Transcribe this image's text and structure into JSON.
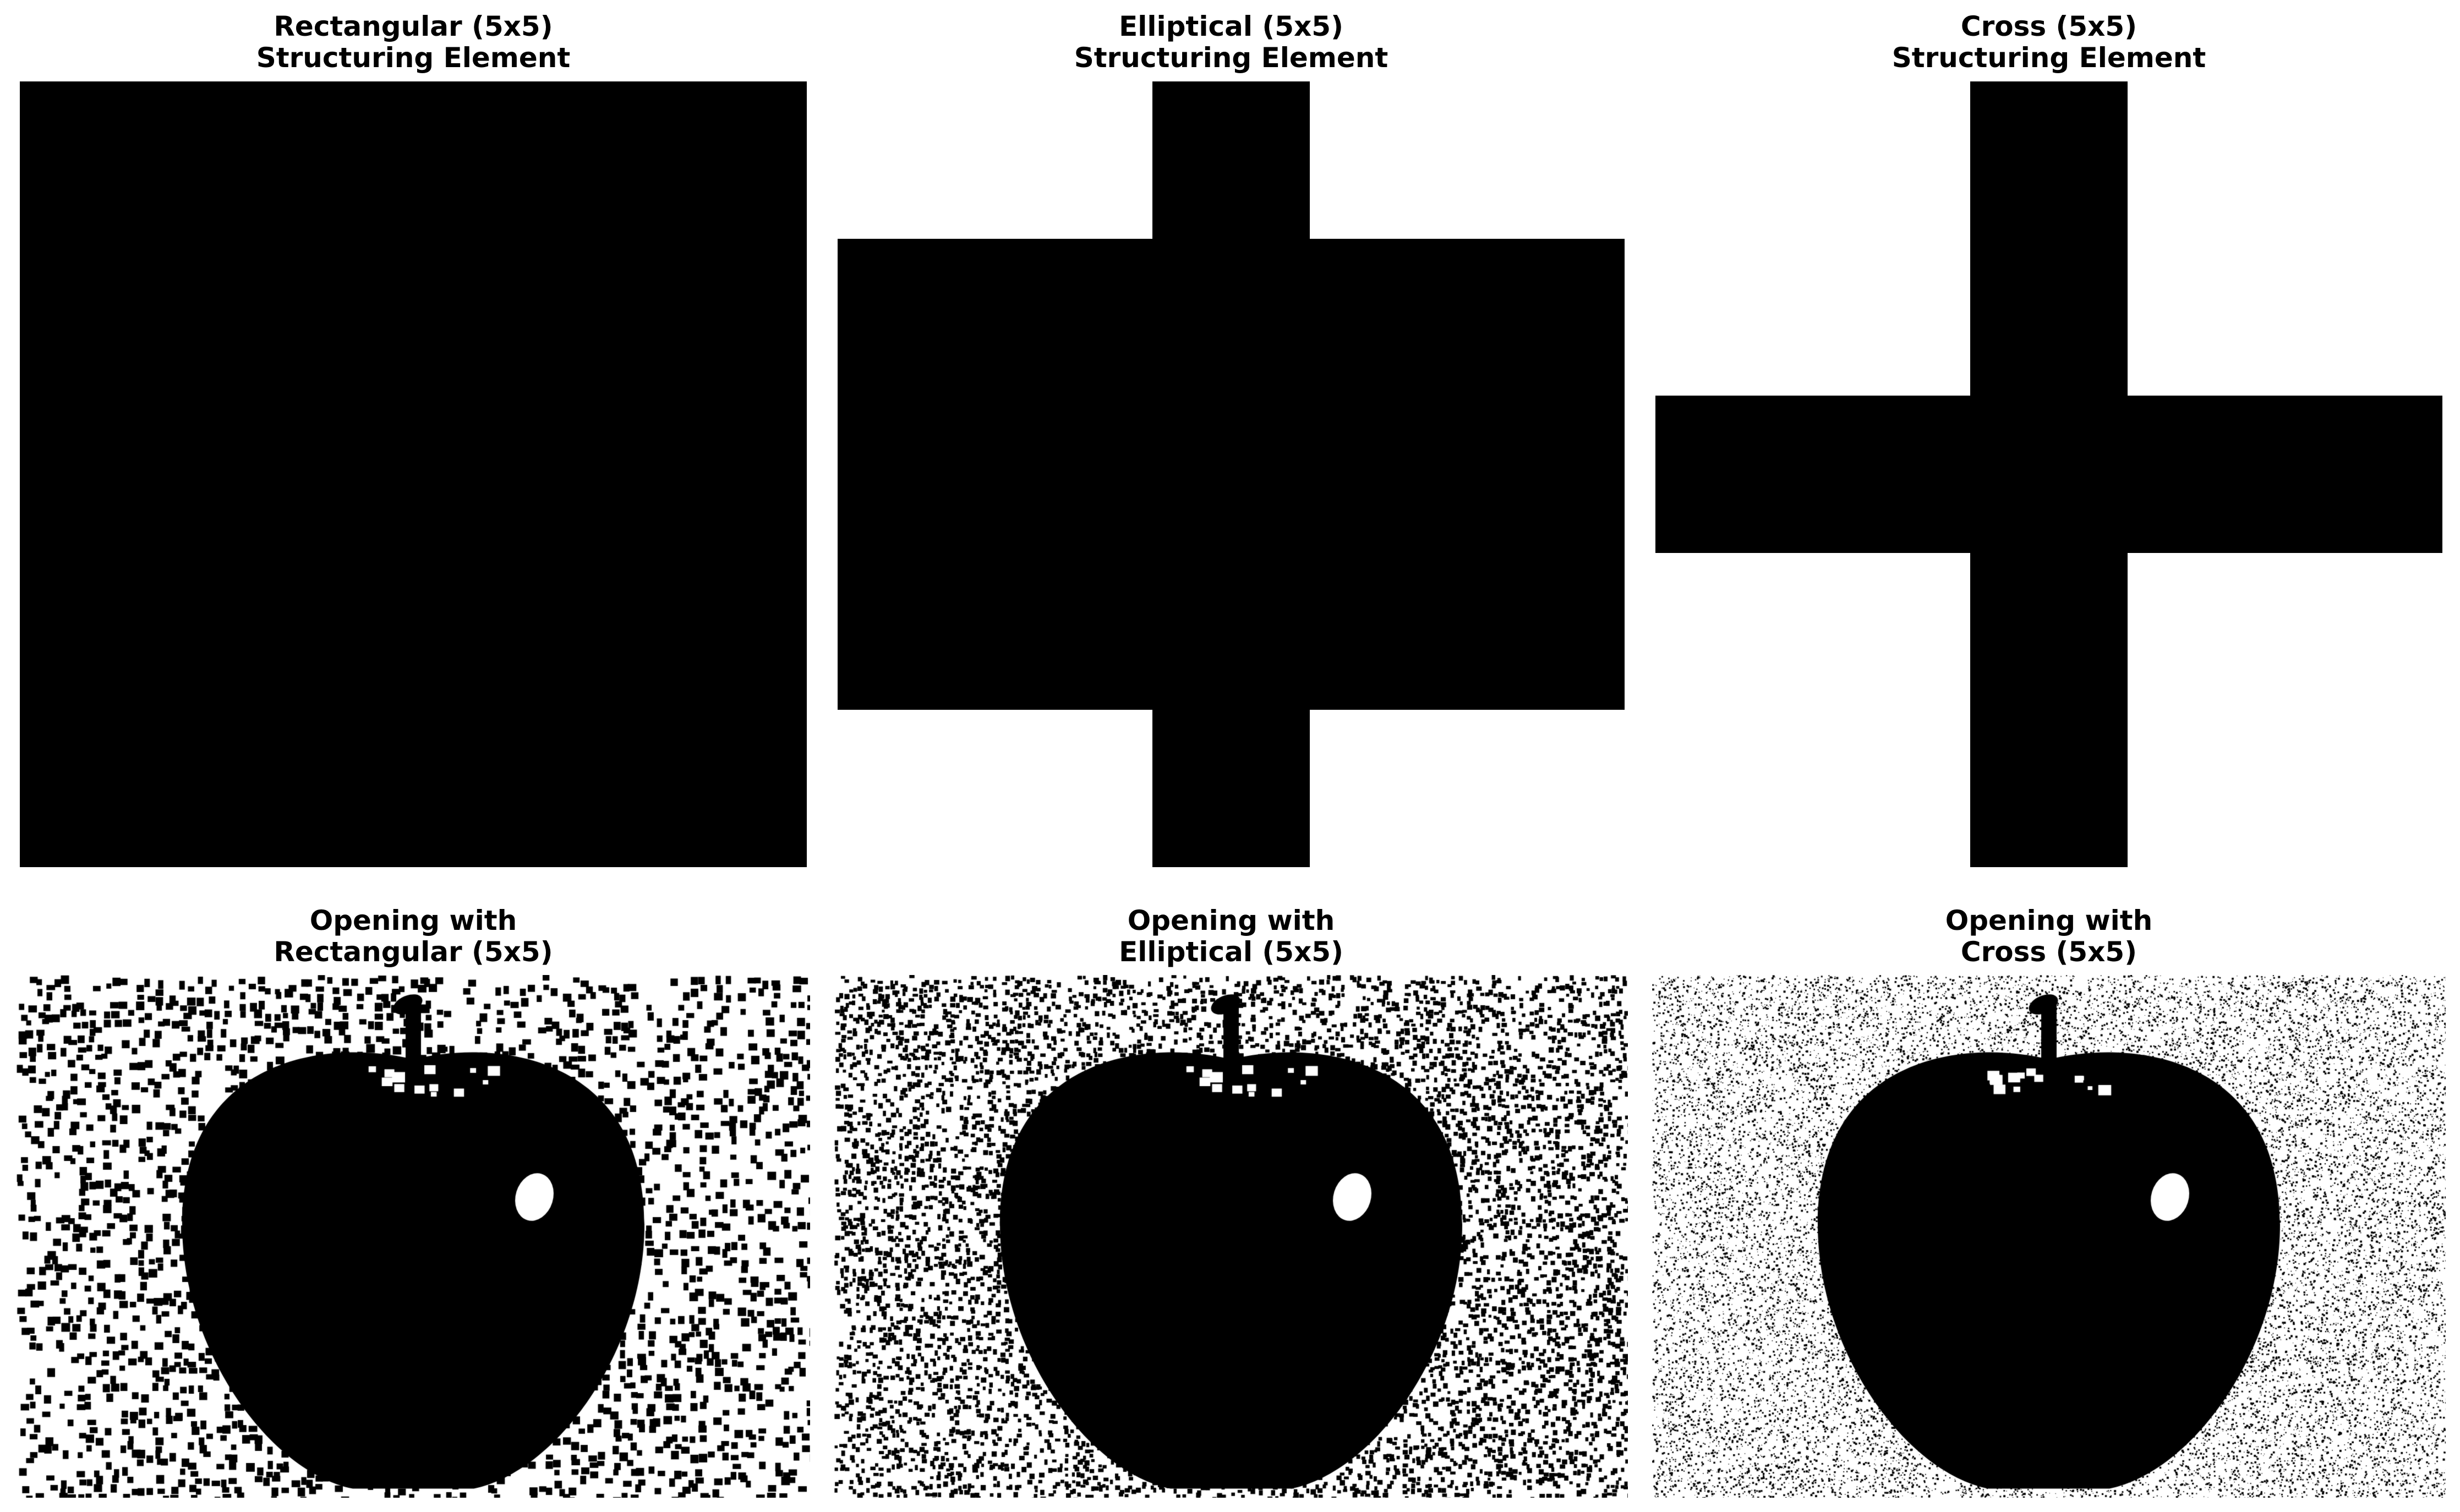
{
  "colors": {
    "background": "#ffffff",
    "foreground": "#000000"
  },
  "panels_top": [
    {
      "title_line1": "Rectangular (5x5)",
      "title_line2": "Structuring Element",
      "kernel": [
        [
          1,
          1,
          1,
          1,
          1
        ],
        [
          1,
          1,
          1,
          1,
          1
        ],
        [
          1,
          1,
          1,
          1,
          1
        ],
        [
          1,
          1,
          1,
          1,
          1
        ],
        [
          1,
          1,
          1,
          1,
          1
        ]
      ]
    },
    {
      "title_line1": "Elliptical (5x5)",
      "title_line2": "Structuring Element",
      "kernel": [
        [
          0,
          0,
          1,
          0,
          0
        ],
        [
          1,
          1,
          1,
          1,
          1
        ],
        [
          1,
          1,
          1,
          1,
          1
        ],
        [
          1,
          1,
          1,
          1,
          1
        ],
        [
          0,
          0,
          1,
          0,
          0
        ]
      ]
    },
    {
      "title_line1": "Cross (5x5)",
      "title_line2": "Structuring Element",
      "kernel": [
        [
          0,
          0,
          1,
          0,
          0
        ],
        [
          0,
          0,
          1,
          0,
          0
        ],
        [
          1,
          1,
          1,
          1,
          1
        ],
        [
          0,
          0,
          1,
          0,
          0
        ],
        [
          0,
          0,
          1,
          0,
          0
        ]
      ]
    }
  ],
  "panels_bottom": [
    {
      "title_line1": "Opening with",
      "title_line2": "Rectangular (5x5)",
      "noise": "coarse"
    },
    {
      "title_line1": "Opening with",
      "title_line2": "Elliptical (5x5)",
      "noise": "medium"
    },
    {
      "title_line1": "Opening with",
      "title_line2": "Cross (5x5)",
      "noise": "fine"
    }
  ]
}
